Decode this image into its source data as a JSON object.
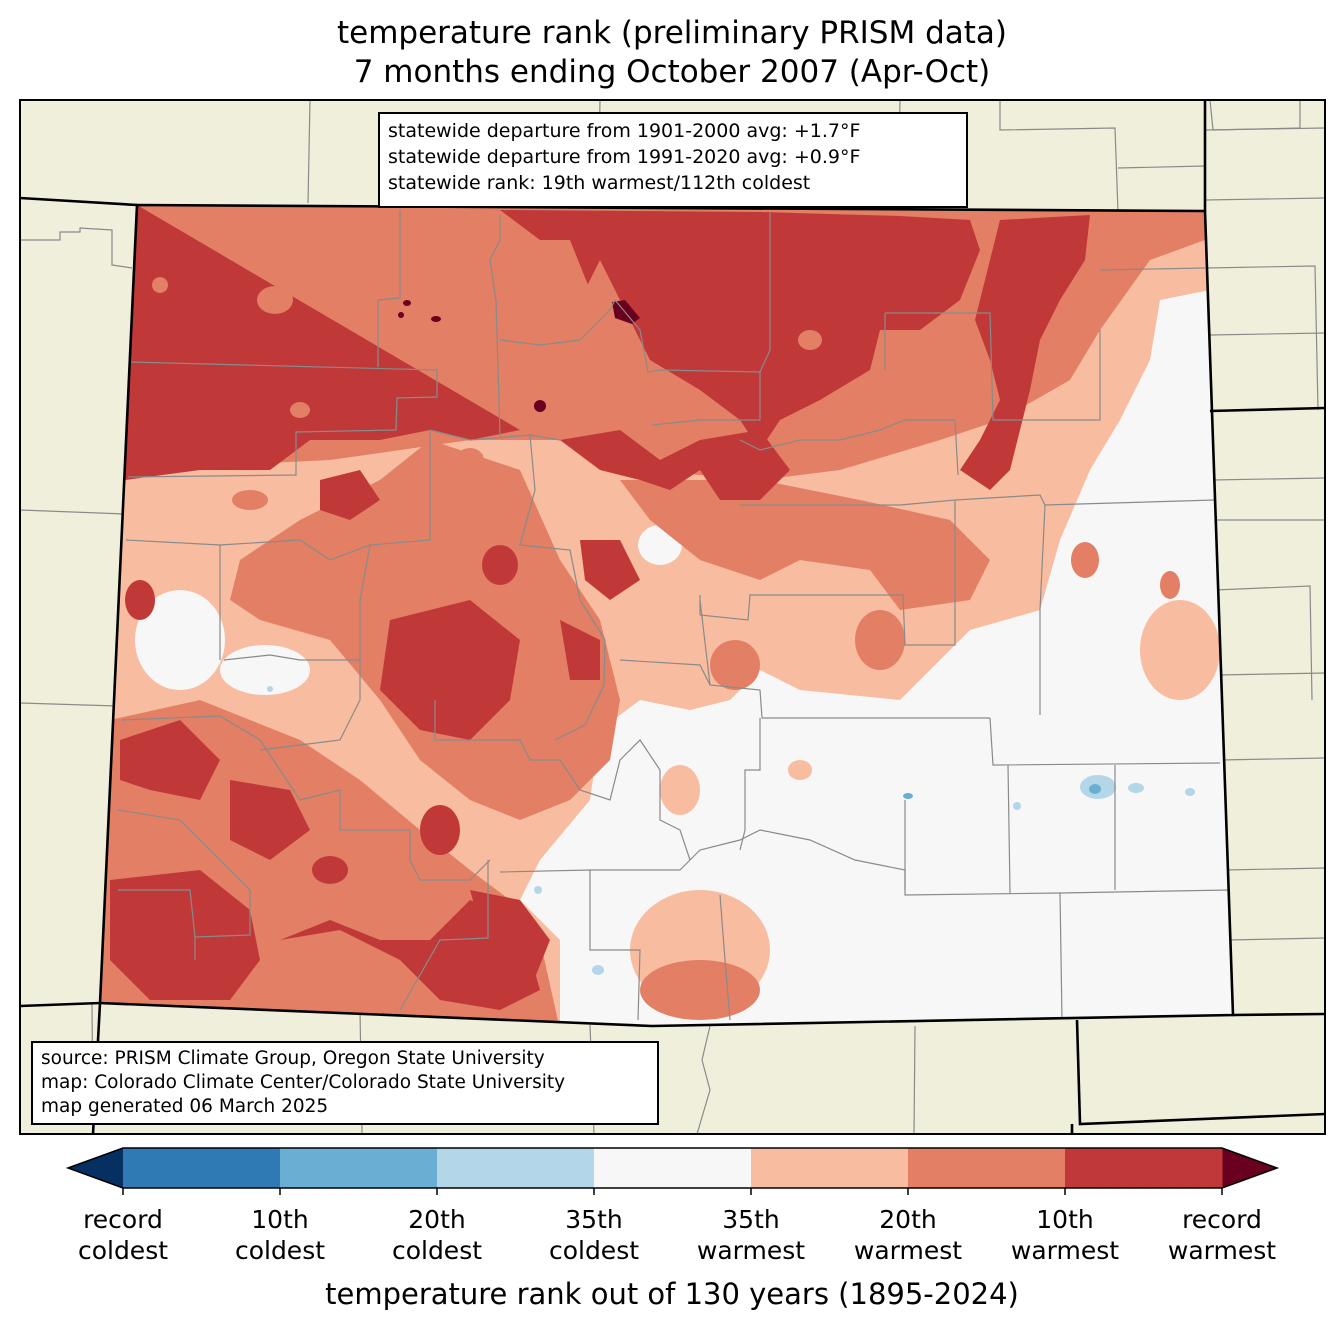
{
  "title": {
    "line1": "temperature rank (preliminary PRISM data)",
    "line2": "7 months ending October 2007 (Apr-Oct)"
  },
  "stats": [
    "statewide departure from 1901-2000 avg: +1.7°F",
    "statewide departure from 1991-2020 avg: +0.9°F",
    "statewide rank: 19th warmest/112th coldest"
  ],
  "source": [
    "source: PRISM Climate Group, Oregon State University",
    "map: Colorado Climate Center/Colorado State University",
    "map generated 06 March 2025"
  ],
  "colorbar": {
    "title": "temperature rank out of 130 years (1895-2024)",
    "colors": [
      "#053061",
      "#2f79b5",
      "#6aaed4",
      "#b3d6e8",
      "#f7f7f7",
      "#f8bca0",
      "#e27f64",
      "#c13839",
      "#6a0020"
    ],
    "labels": [
      [
        "record",
        "coldest"
      ],
      [
        "10th",
        "coldest"
      ],
      [
        "20th",
        "coldest"
      ],
      [
        "35th",
        "coldest"
      ],
      [
        "35th",
        "warmest"
      ],
      [
        "20th",
        "warmest"
      ],
      [
        "10th",
        "warmest"
      ],
      [
        "record",
        "warmest"
      ]
    ]
  },
  "map_colors": {
    "background": "#f0efdc",
    "record_warmest": "#6a0020",
    "tenth_warmest": "#c13839",
    "twentieth_warmest": "#e27f64",
    "thirty_fifth_warmest": "#f8bca0",
    "near_normal": "#f7f7f7",
    "thirty_fifth_coldest": "#b3d6e8",
    "twentieth_coldest": "#6aaed4"
  }
}
